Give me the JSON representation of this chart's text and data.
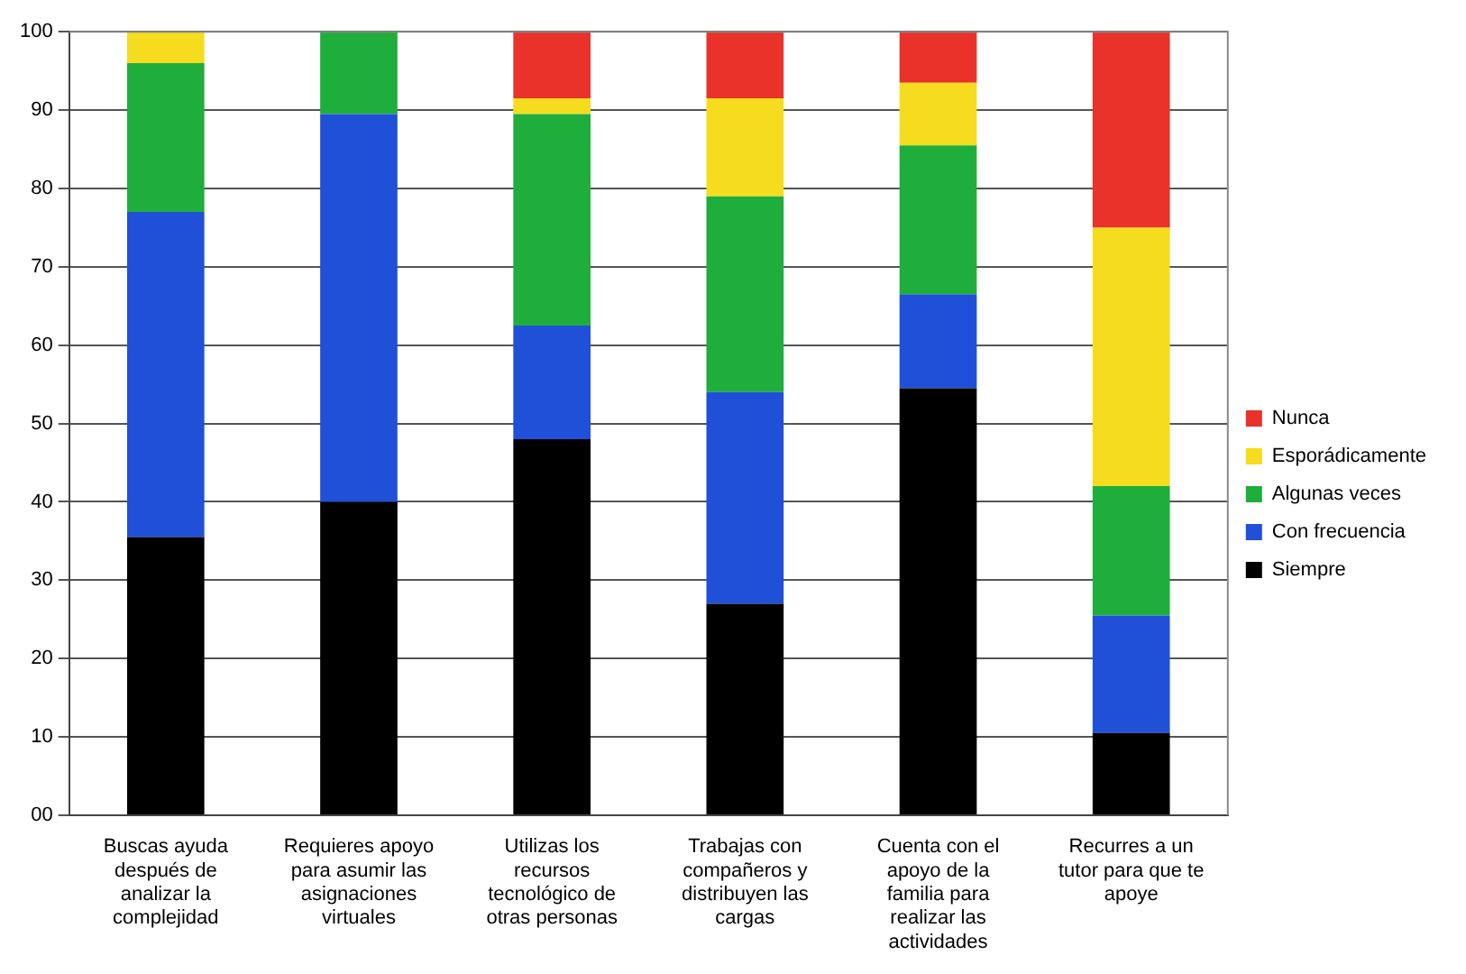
{
  "chart_data": {
    "type": "bar",
    "stacked": true,
    "categories": [
      "Buscas ayuda después de analizar la complejidad",
      "Requieres apoyo para asumir las asignaciones virtuales",
      "Utilizas los recursos tecnológico de otras personas",
      "Trabajas con compañeros y distribuyen las cargas",
      "Cuenta con el apoyo de la familia para realizar las actividades",
      "Recurres a un tutor para que te apoye"
    ],
    "series": [
      {
        "name": "Siempre",
        "color": "#000000",
        "values": [
          35.5,
          40,
          48,
          27,
          54.5,
          10.5
        ]
      },
      {
        "name": "Con frecuencia",
        "color": "#2050d8",
        "values": [
          41.5,
          49.5,
          14.5,
          27,
          12,
          15
        ]
      },
      {
        "name": "Algunas veces",
        "color": "#1fae3c",
        "values": [
          19,
          10.5,
          27,
          25,
          19,
          16.5
        ]
      },
      {
        "name": "Esporádicamente",
        "color": "#f5dc1e",
        "values": [
          4,
          0,
          2,
          12.5,
          8,
          33
        ]
      },
      {
        "name": "Nunca",
        "color": "#e8322a",
        "values": [
          0,
          0,
          8.5,
          8.5,
          6.5,
          25
        ]
      }
    ],
    "ylim": [
      0,
      100
    ],
    "yticks": [
      {
        "value": 0,
        "label": "00"
      },
      10,
      20,
      30,
      40,
      50,
      60,
      70,
      80,
      90,
      100
    ],
    "grid": "y",
    "legend": "right"
  }
}
